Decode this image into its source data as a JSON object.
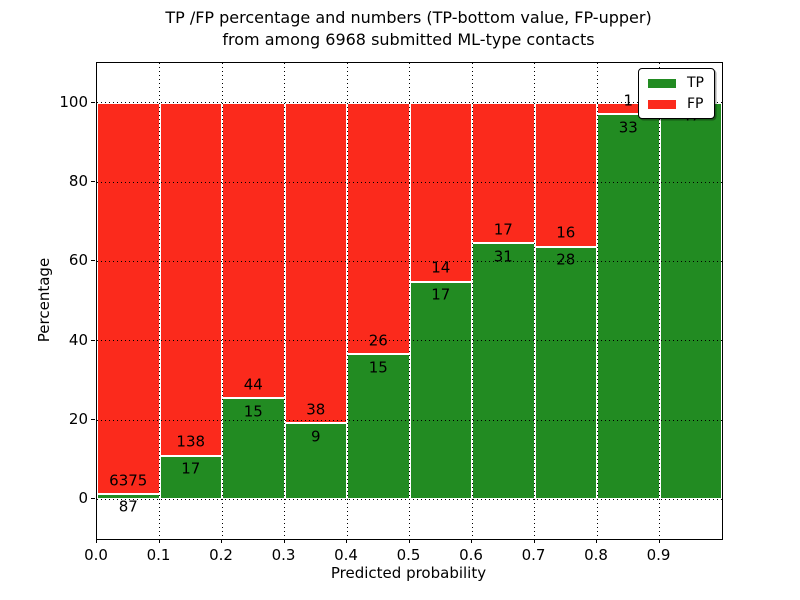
{
  "figure": {
    "title_line1": "TP /FP percentage and numbers (TP-bottom value, FP-upper)",
    "title_line2": "from among 6968 submitted ML-type contacts"
  },
  "chart_data": {
    "type": "bar",
    "stacked": true,
    "normalized_to_percent": true,
    "title": "TP /FP percentage and numbers (TP-bottom value, FP-upper)\nfrom among 6968 submitted ML-type contacts",
    "xlabel": "Predicted probability",
    "ylabel": "Percentage",
    "total_contacts": 6968,
    "categories": [
      "0.0-0.1",
      "0.1-0.2",
      "0.2-0.3",
      "0.3-0.4",
      "0.4-0.5",
      "0.5-0.6",
      "0.6-0.7",
      "0.7-0.8",
      "0.8-0.9",
      "0.9-1.0"
    ],
    "x_tick_labels": [
      "0.0",
      "0.1",
      "0.2",
      "0.3",
      "0.4",
      "0.5",
      "0.6",
      "0.7",
      "0.8",
      "0.9"
    ],
    "y_ticks": [
      0,
      20,
      40,
      60,
      80,
      100
    ],
    "y_tick_labels": [
      "0",
      "20",
      "40",
      "60",
      "80",
      "100"
    ],
    "xlim": [
      0.0,
      1.0
    ],
    "ylim": [
      -10,
      110
    ],
    "bar_width": 0.1,
    "series": [
      {
        "name": "TP",
        "color": "#228b22",
        "counts": [
          87,
          17,
          15,
          9,
          15,
          17,
          31,
          28,
          33,
          47
        ]
      },
      {
        "name": "FP",
        "color": "#fb2a1c",
        "counts": [
          6375,
          138,
          44,
          38,
          26,
          14,
          17,
          16,
          1,
          0
        ]
      }
    ],
    "tp_percent_of_bin": [
      1.3,
      11.0,
      25.4,
      19.1,
      36.6,
      54.8,
      64.6,
      63.6,
      97.1,
      100.0
    ],
    "legend": {
      "position": "upper right",
      "entries": [
        "TP",
        "FP"
      ]
    },
    "grid": {
      "linestyle": "dotted",
      "color": "#000000"
    }
  }
}
